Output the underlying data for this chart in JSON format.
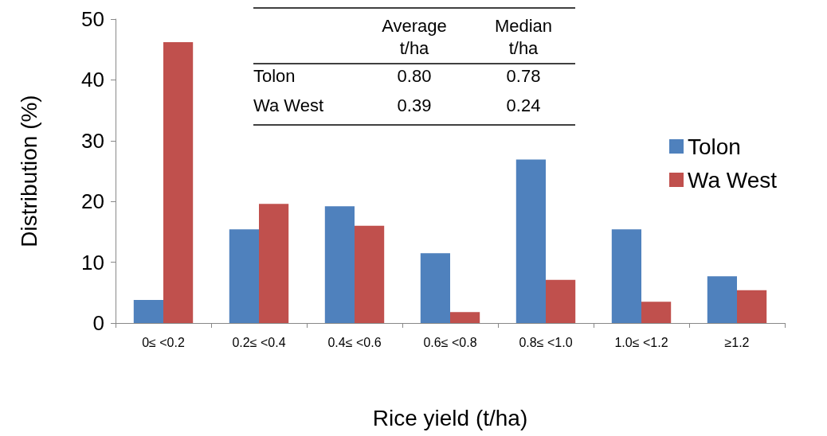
{
  "chart_data": {
    "type": "bar",
    "xlabel": "Rice yield (t/ha)",
    "ylabel": "Distribution (%)",
    "categories": [
      "0≤ <0.2",
      "0.2≤ <0.4",
      "0.4≤ <0.6",
      "0.6≤ <0.8",
      "0.8≤ <1.0",
      "1.0≤ <1.2",
      "≥1.2"
    ],
    "series": [
      {
        "name": "Tolon",
        "color": "#4f81bd",
        "values": [
          3.8,
          15.4,
          19.2,
          11.5,
          26.9,
          15.4,
          7.7
        ]
      },
      {
        "name": "Wa West",
        "color": "#c0504d",
        "values": [
          46.2,
          19.6,
          16.0,
          1.8,
          7.1,
          3.5,
          5.4
        ]
      }
    ],
    "ylim": [
      0,
      50
    ],
    "yticks": [
      0,
      10,
      20,
      30,
      40,
      50
    ],
    "grid": false,
    "legend": "right",
    "annotations": [
      "Average",
      "Median",
      "t/ha",
      "t/ha",
      "Tolon",
      "0.80",
      "0.78",
      "Wa West",
      "0.39",
      "0.24"
    ]
  }
}
